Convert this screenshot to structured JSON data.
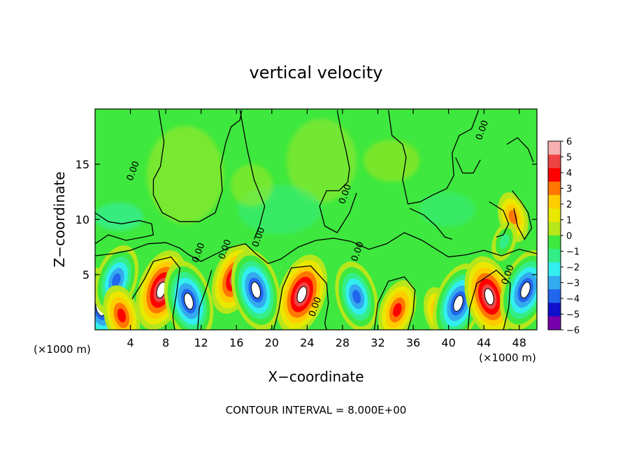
{
  "chart_data": {
    "type": "heatmap",
    "title": "vertical velocity",
    "xlabel": "X−coordinate",
    "ylabel": "Z−coordinate",
    "x_unit_left": "(×1000 m)",
    "x_unit_right": "(×1000 m)",
    "footer": "CONTOUR INTERVAL = 8.000E+00",
    "xlim": [
      0,
      50
    ],
    "ylim": [
      0,
      20
    ],
    "x_ticks": [
      4,
      8,
      12,
      16,
      20,
      24,
      28,
      32,
      36,
      40,
      44,
      48
    ],
    "x_tick_labels": [
      "4",
      "8",
      "12",
      "16",
      "20",
      "24",
      "28",
      "32",
      "36",
      "40",
      "44",
      "48"
    ],
    "y_ticks": [
      5,
      10,
      15
    ],
    "y_tick_labels": [
      "5",
      "10",
      "15"
    ],
    "colorbar": {
      "range": [
        -6,
        6
      ],
      "tick_labels": [
        "6",
        "5",
        "4",
        "3",
        "2",
        "1",
        "0",
        "−1",
        "−2",
        "−3",
        "−4",
        "−5",
        "−6"
      ],
      "colors": [
        "#f7b0b0",
        "#ee4444",
        "#ff0000",
        "#ff7700",
        "#ffcc00",
        "#e8e800",
        "#b6e61b",
        "#3ee83e",
        "#33ee88",
        "#33eeee",
        "#33aaee",
        "#2266ee",
        "#1010cc",
        "#7700aa"
      ]
    },
    "contour_labels": [
      {
        "text": "0.00",
        "x": 4.6,
        "z": 14.3
      },
      {
        "text": "0.00",
        "x": 12.0,
        "z": 6.9
      },
      {
        "text": "0.00",
        "x": 15.0,
        "z": 7.2
      },
      {
        "text": "0.00",
        "x": 18.8,
        "z": 8.3
      },
      {
        "text": "0.00",
        "x": 25.2,
        "z": 2.0
      },
      {
        "text": "0.00",
        "x": 28.6,
        "z": 12.2
      },
      {
        "text": "0.00",
        "x": 30.0,
        "z": 7.0
      },
      {
        "text": "0.00",
        "x": 44.1,
        "z": 18.0
      },
      {
        "text": "0.00",
        "x": 47.0,
        "z": 4.9
      }
    ],
    "cells": [
      {
        "x": 0.6,
        "z": 2.0,
        "w": -6
      },
      {
        "x": 2.4,
        "z": 4.5,
        "w": -5
      },
      {
        "x": 3.0,
        "z": 1.3,
        "w": 4
      },
      {
        "x": 7.5,
        "z": 3.6,
        "w": 6
      },
      {
        "x": 10.6,
        "z": 2.6,
        "w": -6
      },
      {
        "x": 15.7,
        "z": 4.6,
        "w": 5
      },
      {
        "x": 18.2,
        "z": 3.6,
        "w": -6
      },
      {
        "x": 23.4,
        "z": 3.2,
        "w": 6
      },
      {
        "x": 29.6,
        "z": 3.0,
        "w": -5
      },
      {
        "x": 34.2,
        "z": 1.8,
        "w": 4
      },
      {
        "x": 38.9,
        "z": 1.6,
        "w": 3
      },
      {
        "x": 41.1,
        "z": 2.4,
        "w": -6
      },
      {
        "x": 44.6,
        "z": 3.0,
        "w": 6
      },
      {
        "x": 48.7,
        "z": 3.6,
        "w": -6
      },
      {
        "x": 47.3,
        "z": 10.2,
        "w": 3
      },
      {
        "x": 46.3,
        "z": 8.0,
        "w": -2
      }
    ]
  }
}
